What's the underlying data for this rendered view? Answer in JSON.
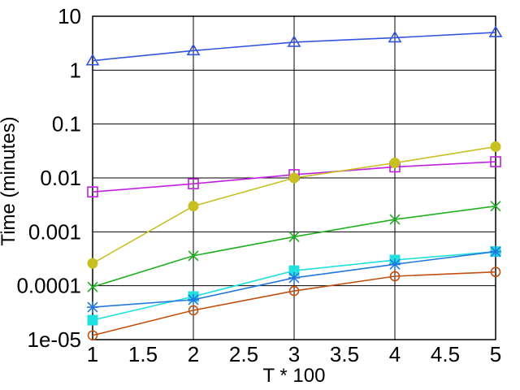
{
  "chart_data": {
    "type": "line",
    "title": "",
    "xlabel": "T * 100",
    "ylabel": "Time (minutes)",
    "xlim": [
      1,
      5
    ],
    "ylim": [
      1e-05,
      10
    ],
    "yscale": "log",
    "grid": true,
    "x": [
      1,
      2,
      3,
      4,
      5
    ],
    "x_tick_labels": [
      "1",
      "1.5",
      "2",
      "2.5",
      "3",
      "3.5",
      "4",
      "4.5",
      "5"
    ],
    "x_tick_values": [
      1,
      1.5,
      2,
      2.5,
      3,
      3.5,
      4,
      4.5,
      5
    ],
    "y_tick_labels": [
      "1e-05",
      "0.0001",
      "0.001",
      "0.01",
      "0.1",
      "1",
      "10"
    ],
    "y_tick_values": [
      1e-05,
      0.0001,
      0.001,
      0.01,
      0.1,
      1,
      10
    ],
    "series": [
      {
        "values": [
          1.5,
          2.3,
          3.3,
          4.0,
          5.0
        ],
        "color": "#3355dd",
        "marker": "triangle-open"
      },
      {
        "values": [
          0.0055,
          0.0078,
          0.0115,
          0.016,
          0.02
        ],
        "color": "#c020e0",
        "marker": "square-open"
      },
      {
        "values": [
          0.00026,
          0.003,
          0.01,
          0.019,
          0.038
        ],
        "color": "#c8c020",
        "marker": "circle-filled"
      },
      {
        "values": [
          9.5e-05,
          0.00036,
          0.00081,
          0.0017,
          0.003
        ],
        "color": "#20b020",
        "marker": "x"
      },
      {
        "values": [
          2.3e-05,
          6.3e-05,
          0.00019,
          0.0003,
          0.00043
        ],
        "color": "#20e0e0",
        "marker": "square-filled"
      },
      {
        "values": [
          4e-05,
          5.5e-05,
          0.00014,
          0.00025,
          0.00043
        ],
        "color": "#2277dd",
        "marker": "star"
      },
      {
        "values": [
          1.2e-05,
          3.5e-05,
          8e-05,
          0.00015,
          0.00018
        ],
        "color": "#c05010",
        "marker": "circle-open"
      }
    ]
  }
}
